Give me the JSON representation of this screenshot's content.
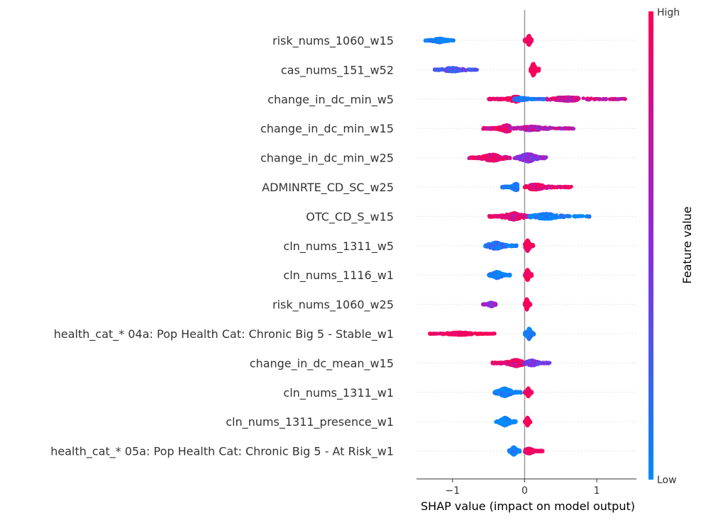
{
  "chart_data": {
    "type": "scatter",
    "subtype": "shap-beeswarm",
    "title": "",
    "xlabel": "SHAP value (impact on model output)",
    "ylabel": "",
    "xlim": [
      -1.5,
      1.55
    ],
    "xticks": [
      {
        "value": -1,
        "label": "−1"
      },
      {
        "value": 0,
        "label": "0"
      },
      {
        "value": 1,
        "label": "1"
      }
    ],
    "grid": false,
    "colorbar": {
      "title": "Feature value",
      "high_label": "High",
      "low_label": "Low",
      "high_color": "#ff0052",
      "mid_color": "#8a2be2",
      "low_color": "#008bfb"
    },
    "features": [
      {
        "name": "risk_nums_1060_w15",
        "clusters": [
          {
            "lo": -1.38,
            "hi": -0.98,
            "center": -1.18,
            "hw": 3,
            "mix": 0.05
          },
          {
            "lo": 0.0,
            "hi": 0.1,
            "center": 0.06,
            "hw": 7,
            "mix": 1.0
          }
        ]
      },
      {
        "name": "cas_nums_151_w52",
        "clusters": [
          {
            "lo": -1.25,
            "hi": -0.65,
            "center": -1.0,
            "hw": 3,
            "mix": 0.3
          },
          {
            "lo": 0.08,
            "hi": 0.2,
            "center": 0.12,
            "hw": 9,
            "mix": 1.0
          }
        ]
      },
      {
        "name": "change_in_dc_min_w5",
        "clusters": [
          {
            "lo": -0.5,
            "hi": -0.08,
            "center": -0.12,
            "hw": 4,
            "mix": 0.9
          },
          {
            "lo": -0.15,
            "hi": 0.3,
            "center": -0.05,
            "hw": 2,
            "mix": 0.05
          },
          {
            "lo": 0.3,
            "hi": 1.4,
            "center": 0.6,
            "hw": 3,
            "mix": 0.8
          }
        ]
      },
      {
        "name": "change_in_dc_min_w15",
        "clusters": [
          {
            "lo": -0.58,
            "hi": -0.2,
            "center": -0.25,
            "hw": 5,
            "mix": 0.9
          },
          {
            "lo": -0.2,
            "hi": 0.68,
            "center": 0.1,
            "hw": 3,
            "mix": 0.7
          }
        ]
      },
      {
        "name": "change_in_dc_min_w25",
        "clusters": [
          {
            "lo": -0.78,
            "hi": -0.2,
            "center": -0.45,
            "hw": 5,
            "mix": 0.92
          },
          {
            "lo": -0.15,
            "hi": 0.3,
            "center": 0.05,
            "hw": 6,
            "mix": 0.5
          }
        ]
      },
      {
        "name": "ADMINRTE_CD_SC_w25",
        "clusters": [
          {
            "lo": -0.32,
            "hi": -0.1,
            "center": -0.12,
            "hw": 5,
            "mix": 0.05
          },
          {
            "lo": 0.0,
            "hi": 0.65,
            "center": 0.15,
            "hw": 4,
            "mix": 0.88
          }
        ]
      },
      {
        "name": "OTC_CD_S_w15",
        "clusters": [
          {
            "lo": -0.5,
            "hi": 0.05,
            "center": -0.15,
            "hw": 5,
            "mix": 0.85
          },
          {
            "lo": 0.05,
            "hi": 0.9,
            "center": 0.3,
            "hw": 4,
            "mix": 0.05
          }
        ]
      },
      {
        "name": "cln_nums_1311_w5",
        "clusters": [
          {
            "lo": -0.55,
            "hi": -0.1,
            "center": -0.4,
            "hw": 5,
            "mix": 0.15
          },
          {
            "lo": 0.0,
            "hi": 0.12,
            "center": 0.04,
            "hw": 8,
            "mix": 1.0
          }
        ]
      },
      {
        "name": "cln_nums_1116_w1",
        "clusters": [
          {
            "lo": -0.5,
            "hi": -0.2,
            "center": -0.38,
            "hw": 5,
            "mix": 0.05
          },
          {
            "lo": 0.0,
            "hi": 0.1,
            "center": 0.04,
            "hw": 8,
            "mix": 1.0
          }
        ]
      },
      {
        "name": "risk_nums_1060_w25",
        "clusters": [
          {
            "lo": -0.58,
            "hi": -0.4,
            "center": -0.46,
            "hw": 3,
            "mix": 0.5
          },
          {
            "lo": 0.0,
            "hi": 0.08,
            "center": 0.03,
            "hw": 8,
            "mix": 1.0
          }
        ]
      },
      {
        "name": "health_cat_* 04a: Pop Health Cat: Chronic Big 5 - Stable_w1",
        "clusters": [
          {
            "lo": -1.32,
            "hi": -0.4,
            "center": -0.9,
            "hw": 2,
            "mix": 1.0
          },
          {
            "lo": 0.0,
            "hi": 0.13,
            "center": 0.06,
            "hw": 8,
            "mix": 0.02
          }
        ]
      },
      {
        "name": "change_in_dc_mean_w15",
        "clusters": [
          {
            "lo": -0.45,
            "hi": 0.0,
            "center": -0.12,
            "hw": 5,
            "mix": 0.9
          },
          {
            "lo": 0.0,
            "hi": 0.35,
            "center": 0.1,
            "hw": 4,
            "mix": 0.45
          }
        ]
      },
      {
        "name": "cln_nums_1311_w1",
        "clusters": [
          {
            "lo": -0.42,
            "hi": -0.05,
            "center": -0.28,
            "hw": 6,
            "mix": 0.02
          },
          {
            "lo": 0.0,
            "hi": 0.1,
            "center": 0.05,
            "hw": 6,
            "mix": 1.0
          }
        ]
      },
      {
        "name": "cln_nums_1311_presence_w1",
        "clusters": [
          {
            "lo": -0.4,
            "hi": -0.12,
            "center": -0.27,
            "hw": 6,
            "mix": 0.02
          },
          {
            "lo": 0.0,
            "hi": 0.08,
            "center": 0.04,
            "hw": 6,
            "mix": 1.0
          }
        ]
      },
      {
        "name": "health_cat_* 05a: Pop Health Cat: Chronic Big 5 - At Risk_w1",
        "clusters": [
          {
            "lo": -0.22,
            "hi": -0.06,
            "center": -0.15,
            "hw": 6,
            "mix": 0.02
          },
          {
            "lo": 0.0,
            "hi": 0.25,
            "center": 0.06,
            "hw": 4,
            "mix": 0.95
          }
        ]
      }
    ]
  }
}
